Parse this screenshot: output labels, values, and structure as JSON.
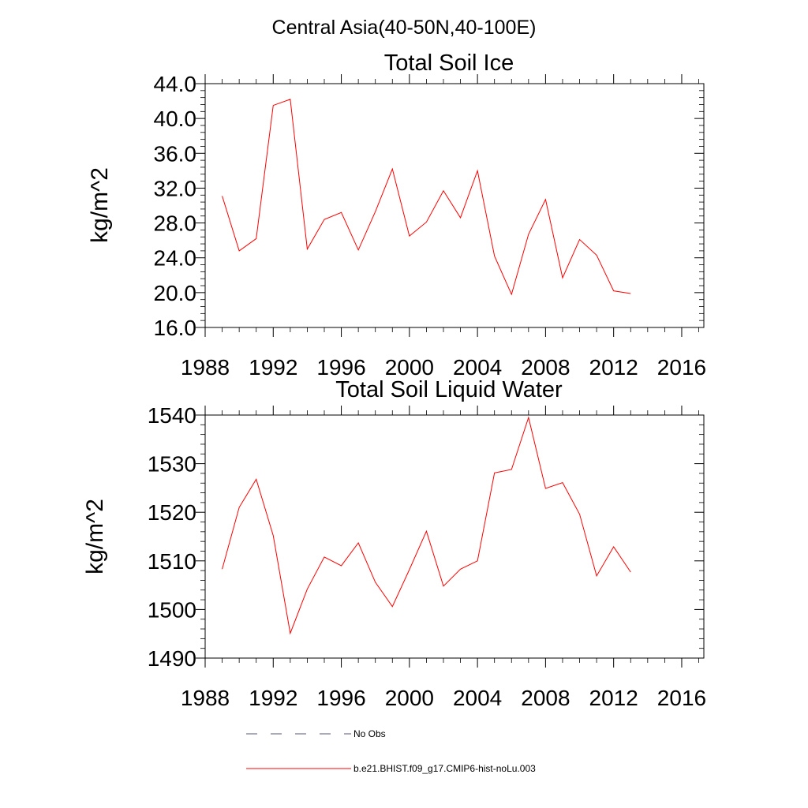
{
  "figure": {
    "title": "Central Asia(40-50N,40-100E)"
  },
  "legend": [
    {
      "label": "No Obs",
      "style": "dashed",
      "color": "#555577"
    },
    {
      "label": "b.e21.BHIST.f09_g17.CMIP6-hist-noLu.003",
      "style": "solid",
      "color": "#ff0000"
    }
  ],
  "chart_data": [
    {
      "type": "line",
      "title": "Total Soil Ice",
      "xlabel": "",
      "ylabel": "kg/m^2",
      "xlim": [
        1988,
        2017.3
      ],
      "ylim": [
        16,
        44
      ],
      "xticks": [
        1988,
        1992,
        1996,
        2000,
        2004,
        2008,
        2012,
        2016
      ],
      "xtick_labels": [
        "1988",
        "1992",
        "1996",
        "2000",
        "2004",
        "2008",
        "2012",
        "2016"
      ],
      "yticks": [
        16,
        20,
        24,
        28,
        32,
        36,
        40,
        44
      ],
      "ytick_labels": [
        "16.0",
        "20.0",
        "24.0",
        "28.0",
        "32.0",
        "36.0",
        "40.0",
        "44.0"
      ],
      "grid": false,
      "series": [
        {
          "name": "b.e21.BHIST.f09_g17.CMIP6-hist-noLu.003",
          "color": "#ff0000",
          "x": [
            1989,
            1990,
            1991,
            1992,
            1993,
            1994,
            1995,
            1996,
            1997,
            1998,
            1999,
            2000,
            2001,
            2002,
            2003,
            2004,
            2005,
            2006,
            2007,
            2008,
            2009,
            2010,
            2011,
            2012,
            2013
          ],
          "y": [
            31.1,
            24.8,
            26.2,
            41.5,
            42.2,
            25.0,
            28.4,
            29.2,
            24.9,
            29.3,
            34.2,
            26.5,
            28.1,
            31.7,
            28.6,
            34.0,
            24.2,
            19.8,
            26.7,
            30.7,
            21.7,
            26.1,
            24.3,
            20.2,
            19.9
          ]
        }
      ]
    },
    {
      "type": "line",
      "title": "Total Soil Liquid Water",
      "xlabel": "",
      "ylabel": "kg/m^2",
      "xlim": [
        1988,
        2017.3
      ],
      "ylim": [
        1490,
        1540
      ],
      "xticks": [
        1988,
        1992,
        1996,
        2000,
        2004,
        2008,
        2012,
        2016
      ],
      "xtick_labels": [
        "1988",
        "1992",
        "1996",
        "2000",
        "2004",
        "2008",
        "2012",
        "2016"
      ],
      "yticks": [
        1490,
        1500,
        1510,
        1520,
        1530,
        1540
      ],
      "ytick_labels": [
        "1490",
        "1500",
        "1510",
        "1520",
        "1530",
        "1540"
      ],
      "grid": false,
      "series": [
        {
          "name": "b.e21.BHIST.f09_g17.CMIP6-hist-noLu.003",
          "color": "#ff0000",
          "x": [
            1989,
            1990,
            1991,
            1992,
            1993,
            1994,
            1995,
            1996,
            1997,
            1998,
            1999,
            2000,
            2001,
            2002,
            2003,
            2004,
            2005,
            2006,
            2007,
            2008,
            2009,
            2010,
            2011,
            2012,
            2013
          ],
          "y": [
            1508.3,
            1521.0,
            1526.8,
            1515.2,
            1495.1,
            1504.2,
            1510.8,
            1509.0,
            1513.7,
            1505.6,
            1500.6,
            1508.2,
            1516.1,
            1504.8,
            1508.3,
            1510.0,
            1528.1,
            1528.8,
            1539.5,
            1524.9,
            1526.1,
            1519.6,
            1506.9,
            1512.9,
            1507.7
          ]
        }
      ]
    }
  ]
}
